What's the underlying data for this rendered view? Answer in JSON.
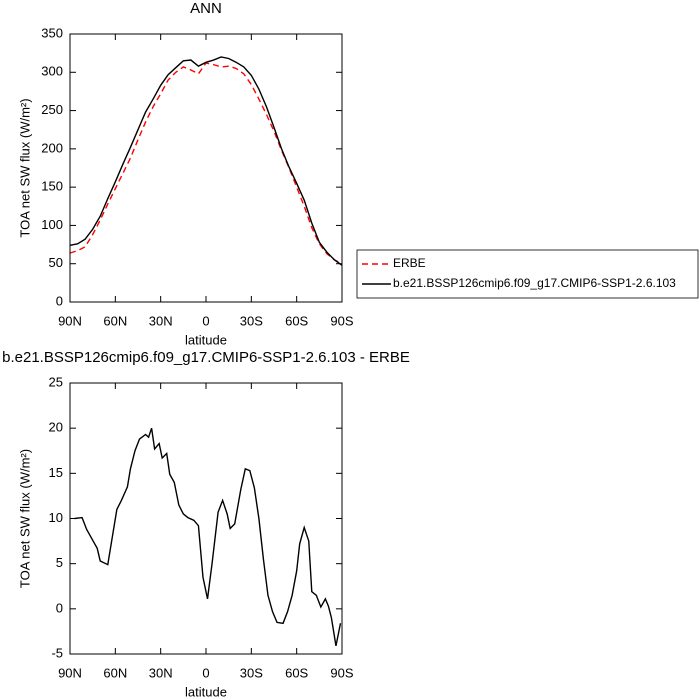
{
  "chart_data": [
    {
      "type": "line",
      "title": "ANN",
      "x_label": "latitude",
      "y_label": "TOA net SW flux (W/m²)",
      "x": [
        90,
        85,
        80,
        75,
        70,
        65,
        60,
        55,
        50,
        45,
        40,
        35,
        30,
        25,
        20,
        15,
        10,
        5,
        0,
        -5,
        -10,
        -15,
        -20,
        -25,
        -30,
        -35,
        -40,
        -45,
        -50,
        -55,
        -60,
        -65,
        -70,
        -75,
        -80,
        -85,
        -90
      ],
      "series": [
        {
          "name": "ERBE",
          "color": "#ff0000",
          "dashed": true,
          "values": [
            64,
            67,
            72,
            88,
            107,
            128,
            148,
            168,
            188,
            212,
            235,
            255,
            272,
            290,
            300,
            307,
            303,
            298,
            312,
            310,
            307,
            308,
            305,
            298,
            284,
            265,
            245,
            223,
            198,
            175,
            150,
            125,
            97,
            76,
            63,
            55,
            50
          ]
        },
        {
          "name": "b.e21.BSSP126cmip6.f09_g17.CMIP6-SSP1-2.6.103",
          "color": "#000000",
          "dashed": false,
          "values": [
            74,
            76,
            82,
            95,
            112,
            135,
            157,
            180,
            202,
            225,
            248,
            265,
            283,
            297,
            306,
            315,
            316,
            308,
            313,
            316,
            320,
            318,
            313,
            307,
            296,
            278,
            255,
            228,
            200,
            176,
            155,
            133,
            103,
            78,
            65,
            55,
            48
          ]
        }
      ],
      "xlim": [
        90,
        -90
      ],
      "xticks": [
        {
          "value": 90,
          "label": "90N"
        },
        {
          "value": 60,
          "label": "60N"
        },
        {
          "value": 30,
          "label": "30N"
        },
        0,
        {
          "value": -30,
          "label": "30S"
        },
        {
          "value": -60,
          "label": "60S"
        },
        {
          "value": -90,
          "label": "90S"
        }
      ],
      "ylim": [
        0,
        350
      ],
      "yticks": [
        0,
        50,
        100,
        150,
        200,
        250,
        300,
        350
      ],
      "legend": "outside-right"
    },
    {
      "type": "line",
      "title": "b.e21.BSSP126cmip6.f09_g17.CMIP6-SSP1-2.6.103 - ERBE",
      "x_label": "latitude",
      "y_label": "TOA net SW flux (W/m²)",
      "x": [
        87,
        82,
        79,
        75,
        72,
        70,
        65,
        59,
        56,
        52,
        50,
        47,
        44,
        40,
        38,
        36,
        34,
        31,
        29,
        26,
        24,
        21,
        18,
        15,
        12,
        8,
        5,
        2,
        -1,
        -4,
        -8,
        -11,
        -14,
        -16,
        -19,
        -23,
        -26,
        -29,
        -32,
        -35,
        -38,
        -41,
        -44,
        -47,
        -51,
        -54,
        -57,
        -60,
        -62,
        -65,
        -68,
        -70,
        -73,
        -76,
        -79,
        -81,
        -83,
        -86,
        -89
      ],
      "series": [
        {
          "name": "b.e21.BSSP126cmip6.f09_g17.CMIP6-SSP1-2.6.103 - ERBE",
          "color": "#000000",
          "dashed": false,
          "values": [
            10,
            10.1,
            8.8,
            7.6,
            6.7,
            5.3,
            4.9,
            11,
            12,
            13.5,
            15.5,
            17.5,
            18.8,
            19.3,
            19,
            20,
            17.7,
            18.3,
            16.7,
            17.2,
            14.9,
            14,
            11.5,
            10.5,
            10.1,
            9.8,
            9.2,
            3.5,
            1.1,
            5,
            10.7,
            12,
            10.5,
            8.9,
            9.4,
            13.2,
            15.5,
            15.3,
            13.4,
            10,
            5.5,
            1.5,
            -0.3,
            -1.5,
            -1.6,
            -0.3,
            1.5,
            4.2,
            7.2,
            9,
            7.5,
            1.9,
            1.5,
            0.2,
            1.1,
            0.3,
            -1,
            -4.1,
            -1.6
          ]
        }
      ],
      "xlim": [
        90,
        -90
      ],
      "xticks": [
        {
          "value": 90,
          "label": "90N"
        },
        {
          "value": 60,
          "label": "60N"
        },
        {
          "value": 30,
          "label": "30N"
        },
        0,
        {
          "value": -30,
          "label": "30S"
        },
        {
          "value": -60,
          "label": "60S"
        },
        {
          "value": -90,
          "label": "90S"
        }
      ],
      "ylim": [
        -5,
        25
      ],
      "yticks": [
        -5,
        0,
        5,
        10,
        15,
        20,
        25
      ]
    }
  ]
}
